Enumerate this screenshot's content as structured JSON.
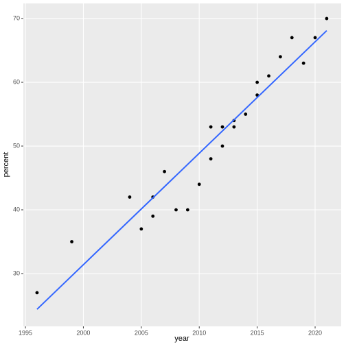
{
  "chart_data": {
    "type": "scatter",
    "x_label": "year",
    "y_label": "percent",
    "series": [
      {
        "type": "scatter",
        "color": "#000000",
        "x": [
          1996,
          1999,
          2004,
          2005,
          2006,
          2006,
          2007,
          2008,
          2009,
          2010,
          2011,
          2011,
          2012,
          2012,
          2013,
          2013,
          2014,
          2015,
          2015,
          2016,
          2017,
          2018,
          2019,
          2020,
          2021
        ],
        "values": [
          27,
          35,
          42,
          37,
          42,
          39,
          46,
          40,
          40,
          44,
          53,
          48,
          53,
          50,
          54,
          53,
          55,
          60,
          58,
          61,
          64,
          67,
          63,
          67,
          70
        ]
      },
      {
        "type": "line",
        "color": "#3366FF",
        "x": [
          1996,
          2021
        ],
        "values": [
          24.4,
          68.1
        ]
      }
    ],
    "xlim": [
      1994.82,
      2022.25
    ],
    "ylim": [
      21.72,
      72.37
    ],
    "xticks": [
      1995,
      2000,
      2005,
      2010,
      2015,
      2020
    ],
    "yticks": [
      30,
      40,
      50,
      60,
      70
    ],
    "grid": true
  }
}
